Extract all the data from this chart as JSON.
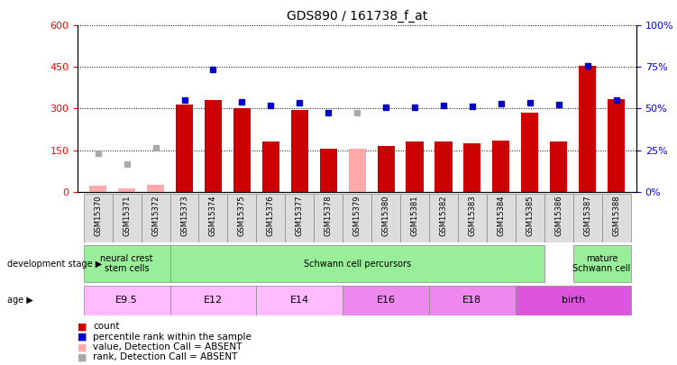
{
  "title": "GDS890 / 161738_f_at",
  "samples": [
    "GSM15370",
    "GSM15371",
    "GSM15372",
    "GSM15373",
    "GSM15374",
    "GSM15375",
    "GSM15376",
    "GSM15377",
    "GSM15378",
    "GSM15379",
    "GSM15380",
    "GSM15381",
    "GSM15382",
    "GSM15383",
    "GSM15384",
    "GSM15385",
    "GSM15386",
    "GSM15387",
    "GSM15388"
  ],
  "bar_values": [
    null,
    null,
    null,
    315,
    330,
    300,
    180,
    295,
    155,
    null,
    165,
    180,
    180,
    175,
    183,
    285,
    180,
    455,
    335
  ],
  "bar_absent": [
    22,
    12,
    25,
    null,
    null,
    null,
    null,
    null,
    null,
    155,
    null,
    null,
    null,
    null,
    null,
    null,
    null,
    null,
    null
  ],
  "rank_values": [
    null,
    null,
    null,
    330,
    440,
    325,
    310,
    320,
    285,
    null,
    305,
    305,
    310,
    308,
    318,
    320,
    315,
    455,
    330
  ],
  "rank_absent": [
    140,
    100,
    158,
    null,
    null,
    null,
    null,
    null,
    null,
    285,
    null,
    null,
    null,
    null,
    null,
    null,
    null,
    null,
    null
  ],
  "bar_color": "#cc0000",
  "bar_absent_color": "#ffaaaa",
  "rank_color": "#0000cc",
  "rank_absent_color": "#aaaaaa",
  "ylim_left": [
    0,
    600
  ],
  "ylim_right": [
    0,
    100
  ],
  "yticks_left": [
    0,
    150,
    300,
    450,
    600
  ],
  "yticks_right": [
    0,
    25,
    50,
    75,
    100
  ],
  "ytick_labels_right": [
    "0%",
    "25%",
    "50%",
    "75%",
    "100%"
  ],
  "dev_stages": [
    {
      "label": "neural crest\nstem cells",
      "start": 0,
      "end": 2,
      "color": "#99ee99"
    },
    {
      "label": "Schwann cell percursors",
      "start": 3,
      "end": 15,
      "color": "#99ee99"
    },
    {
      "label": "mature\nSchwann cell",
      "start": 17,
      "end": 18,
      "color": "#99ee99"
    }
  ],
  "age_stages": [
    {
      "label": "E9.5",
      "start": 0,
      "end": 2,
      "color": "#ffbbff"
    },
    {
      "label": "E12",
      "start": 3,
      "end": 5,
      "color": "#ffbbff"
    },
    {
      "label": "E14",
      "start": 6,
      "end": 8,
      "color": "#ffbbff"
    },
    {
      "label": "E16",
      "start": 9,
      "end": 11,
      "color": "#ee88ee"
    },
    {
      "label": "E18",
      "start": 12,
      "end": 14,
      "color": "#ee88ee"
    },
    {
      "label": "birth",
      "start": 15,
      "end": 18,
      "color": "#dd55dd"
    }
  ],
  "legend_items": [
    {
      "label": "count",
      "color": "#cc0000"
    },
    {
      "label": "percentile rank within the sample",
      "color": "#0000cc"
    },
    {
      "label": "value, Detection Call = ABSENT",
      "color": "#ffaaaa"
    },
    {
      "label": "rank, Detection Call = ABSENT",
      "color": "#aaaaaa"
    }
  ],
  "xtick_bg": "#dddddd",
  "xtick_sep_color": "#888888"
}
